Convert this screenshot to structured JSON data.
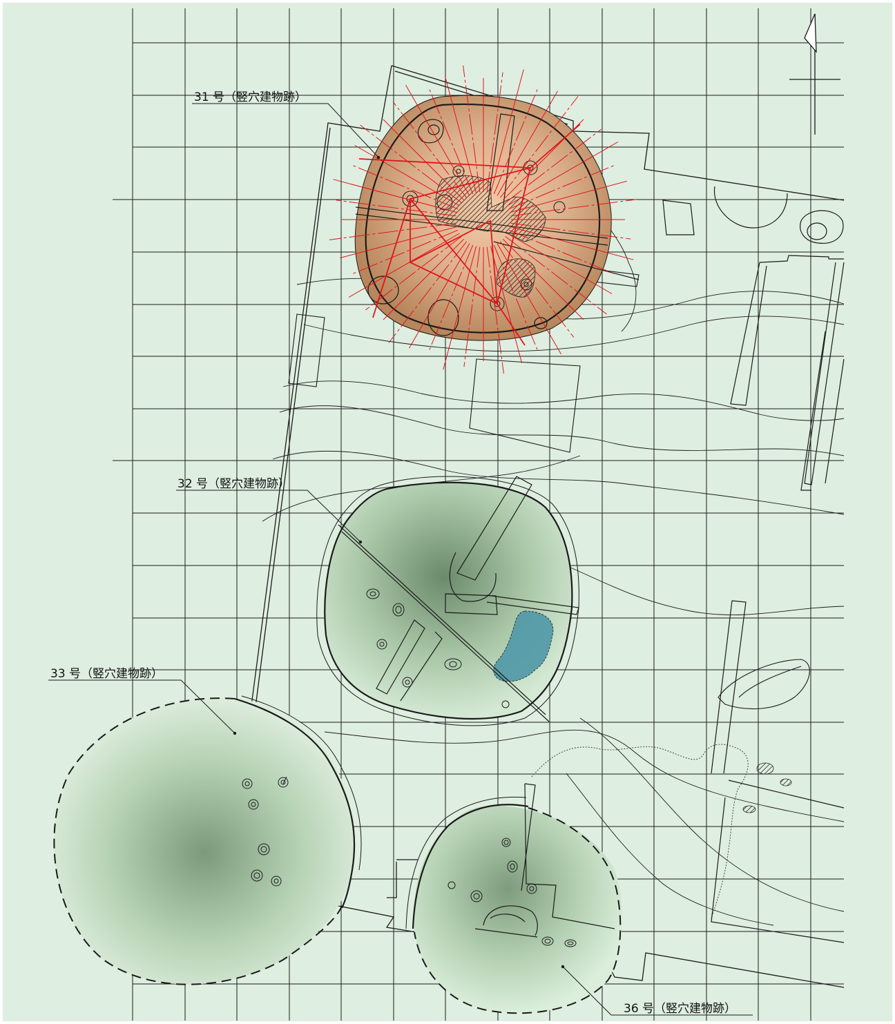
{
  "map": {
    "background_color": "#deeee0",
    "grid_color": "#1a1a1a",
    "outline_color": "#1a1a1a",
    "section_line_color": "#e0141a",
    "features": [
      {
        "id": "31",
        "label": "31 号（竪穴建物跡）",
        "fill_style": "brown-radial",
        "fill_color": "#b7865c",
        "highlighted": true
      },
      {
        "id": "32",
        "label": "32 号（竪穴建物跡）",
        "fill_style": "green-radial",
        "fill_color": "#6e8f6e",
        "water_patch_color": "#4f98a6",
        "highlighted": false
      },
      {
        "id": "33",
        "label": "33 号（竪穴建物跡）",
        "fill_style": "green-radial",
        "fill_color": "#6e8f6e",
        "outline": "dashed",
        "highlighted": false
      },
      {
        "id": "36",
        "label": "36 号（竪穴建物跡）",
        "fill_style": "green-radial",
        "fill_color": "#6e8f6e",
        "outline": "dashed",
        "highlighted": false
      }
    ],
    "north_arrow": "north-arrow-icon"
  }
}
